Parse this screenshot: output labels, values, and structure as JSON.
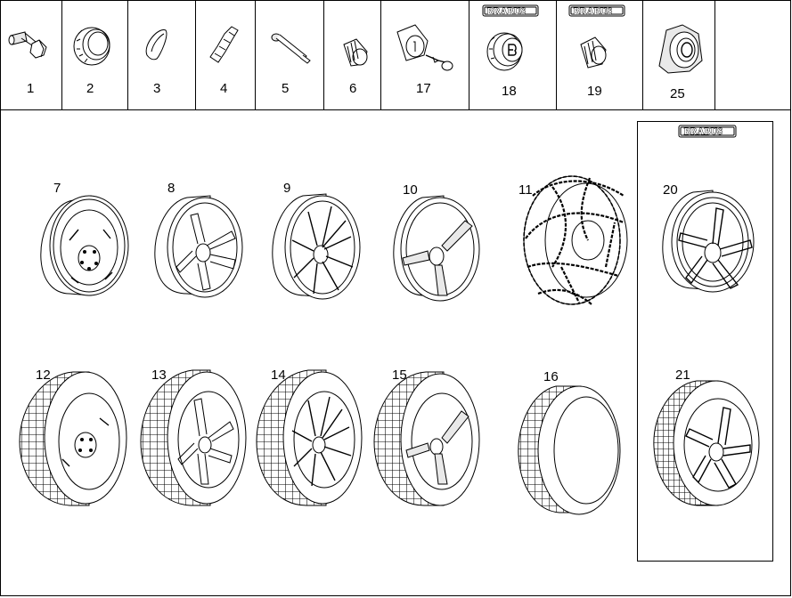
{
  "top_row": {
    "parts": [
      {
        "number": "1"
      },
      {
        "number": "2"
      },
      {
        "number": "3"
      },
      {
        "number": "4"
      },
      {
        "number": "5"
      },
      {
        "number": "6"
      },
      {
        "number": "17"
      },
      {
        "number": "18",
        "badge": "BRABUS"
      },
      {
        "number": "19",
        "badge": "BRABUS"
      },
      {
        "number": "25"
      }
    ]
  },
  "wheels": {
    "steel_wheel": "7",
    "alloy_5_spoke": "8",
    "alloy_multi_spoke": "9",
    "alloy_3_spoke": "10",
    "snow_chain": "11",
    "complete_steel": "12",
    "complete_5_spoke": "13",
    "complete_multi_spoke": "14",
    "complete_3_spoke": "15",
    "tire_only": "16"
  },
  "brabus_group": {
    "badge": "BRABUS",
    "wheel": "20",
    "complete_wheel": "21"
  }
}
